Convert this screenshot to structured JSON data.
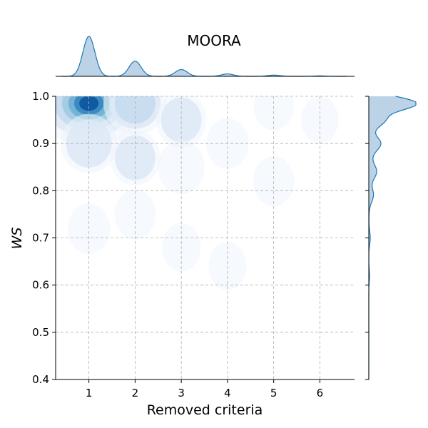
{
  "chart_data": {
    "type": "kde-joint",
    "title": "MOORA",
    "xlabel": "Removed criteria",
    "ylabel": "WS",
    "xlim": [
      0.28,
      6.75
    ],
    "ylim": [
      0.4,
      1.0
    ],
    "x_ticks": [
      1,
      2,
      3,
      4,
      5,
      6
    ],
    "x_tick_labels": [
      "1",
      "2",
      "3",
      "4",
      "5",
      "6"
    ],
    "y_ticks": [
      0.4,
      0.5,
      0.6,
      0.7,
      0.8,
      0.9,
      1.0
    ],
    "y_tick_labels": [
      "0.4",
      "0.5",
      "0.6",
      "0.7",
      "0.8",
      "0.9",
      "1.0"
    ],
    "grid": true,
    "colormap": "Blues",
    "colors": {
      "marginal_line": "#1f77b4",
      "marginal_fill": "#bcd2e7",
      "levels": [
        "#eef4fb",
        "#dde9f6",
        "#c6dbef",
        "#9ecae1",
        "#6baed6",
        "#3182bd",
        "#08519c"
      ]
    },
    "density_components": [
      {
        "x": 1.0,
        "y": 0.985,
        "weight": 1.0
      },
      {
        "x": 1.0,
        "y": 0.9,
        "weight": 0.35
      },
      {
        "x": 1.0,
        "y": 0.72,
        "weight": 0.12
      },
      {
        "x": 2.0,
        "y": 0.985,
        "weight": 0.45
      },
      {
        "x": 2.0,
        "y": 0.87,
        "weight": 0.25
      },
      {
        "x": 2.0,
        "y": 0.75,
        "weight": 0.1
      },
      {
        "x": 3.0,
        "y": 0.95,
        "weight": 0.25
      },
      {
        "x": 3.0,
        "y": 0.85,
        "weight": 0.2
      },
      {
        "x": 3.0,
        "y": 0.68,
        "weight": 0.06
      },
      {
        "x": 4.0,
        "y": 0.9,
        "weight": 0.12
      },
      {
        "x": 4.0,
        "y": 0.64,
        "weight": 0.04
      },
      {
        "x": 5.0,
        "y": 0.98,
        "weight": 0.08
      },
      {
        "x": 5.0,
        "y": 0.82,
        "weight": 0.1
      },
      {
        "x": 6.0,
        "y": 0.95,
        "weight": 0.03
      }
    ],
    "marginal_x_peaks": [
      {
        "x": 1.0,
        "height": 1.0
      },
      {
        "x": 2.0,
        "height": 0.38
      },
      {
        "x": 3.0,
        "height": 0.17
      },
      {
        "x": 4.0,
        "height": 0.06
      },
      {
        "x": 5.0,
        "height": 0.03
      },
      {
        "x": 6.0,
        "height": 0.01
      }
    ],
    "marginal_y_peaks": [
      {
        "y": 0.985,
        "height": 1.0
      },
      {
        "y": 0.95,
        "height": 0.3
      },
      {
        "y": 0.9,
        "height": 0.2
      },
      {
        "y": 0.84,
        "height": 0.12
      },
      {
        "y": 0.79,
        "height": 0.08
      },
      {
        "y": 0.7,
        "height": 0.03
      },
      {
        "y": 0.62,
        "height": 0.015
      }
    ]
  }
}
